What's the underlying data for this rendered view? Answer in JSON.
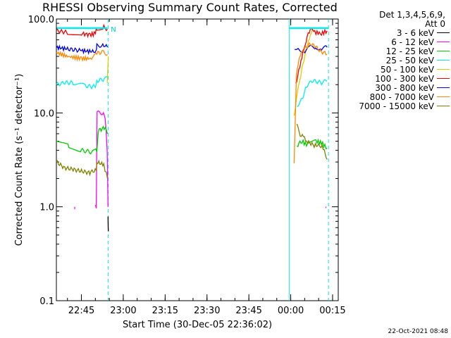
{
  "title": "RHESSI Observing Summary Count Rates, Corrected",
  "legend_header": [
    "Det 1,3,4,5,6,9,",
    "Att 0"
  ],
  "xlabel": "Start Time (30-Dec-05 22:36:02)",
  "ylabel": "Corrected Count Rate (s⁻¹ detector⁻¹)",
  "timestamp": "22-Oct-2021 08:48",
  "chart_data": {
    "type": "line",
    "title": "RHESSI Observing Summary Count Rates, Corrected",
    "xlabel": "Start Time (30-Dec-05 22:36:02)",
    "ylabel": "Corrected Count Rate (s⁻¹ detector⁻¹)",
    "yscale": "log",
    "xlim_minutes": [
      0,
      101
    ],
    "ylim": [
      0.1,
      100.0
    ],
    "xticks": [
      {
        "label": "22:45",
        "minutes": 8.97
      },
      {
        "label": "23:00",
        "minutes": 23.97
      },
      {
        "label": "23:15",
        "minutes": 38.97
      },
      {
        "label": "23:30",
        "minutes": 53.97
      },
      {
        "label": "23:45",
        "minutes": 68.97
      },
      {
        "label": "00:00",
        "minutes": 83.97
      },
      {
        "label": "00:15",
        "minutes": 98.97
      }
    ],
    "yticks": [
      {
        "label": "0.1",
        "value": 0.1
      },
      {
        "label": "1.0",
        "value": 1.0
      },
      {
        "label": "10.0",
        "value": 10.0
      },
      {
        "label": "100.0",
        "value": 100.0
      }
    ],
    "legend_position": "right",
    "series": [
      {
        "name": "3 - 6 keV",
        "color": "#000000",
        "segments": [
          [
            [
              18.5,
              0.75
            ],
            [
              18.6,
              0.55
            ]
          ]
        ]
      },
      {
        "name": "6 - 12 keV",
        "color": "#ff00ff",
        "segments": [
          [
            [
              6.5,
              1.0
            ],
            [
              6.6,
              1.0
            ]
          ],
          [
            [
              14.0,
              1.0
            ],
            [
              14.3,
              1.0
            ],
            [
              14.5,
              5.0
            ],
            [
              14.6,
              10.0
            ],
            [
              16.5,
              10.0
            ],
            [
              17.5,
              9.0
            ],
            [
              18.2,
              4.0
            ],
            [
              18.5,
              1.0
            ]
          ],
          [
            [
              96.5,
              1.0
            ],
            [
              96.6,
              1.0
            ]
          ]
        ]
      },
      {
        "name": "12 - 25 keV",
        "color": "#00cc00",
        "segments": [
          [
            [
              0,
              5.0
            ],
            [
              4.5,
              4.5
            ],
            [
              9,
              4.0
            ],
            [
              13,
              3.8
            ],
            [
              14.5,
              4.0
            ],
            [
              15,
              6.5
            ],
            [
              17.5,
              7.0
            ],
            [
              18.3,
              6.0
            ]
          ],
          [
            [
              86.2,
              4.5
            ],
            [
              88,
              5.0
            ],
            [
              90,
              4.5
            ],
            [
              93,
              5.0
            ],
            [
              95,
              4.8
            ],
            [
              97,
              4.2
            ]
          ]
        ]
      },
      {
        "name": "25 - 50 keV",
        "color": "#00eeee",
        "segments": [
          [
            [
              0,
              20.0
            ],
            [
              3,
              21.0
            ],
            [
              6,
              21.0
            ],
            [
              10,
              19.5
            ],
            [
              13,
              19.0
            ],
            [
              14,
              19.5
            ],
            [
              14.5,
              22.0
            ],
            [
              17.5,
              23.0
            ],
            [
              18.3,
              24.0
            ]
          ],
          [
            [
              86.2,
              12.0
            ],
            [
              88,
              14.0
            ],
            [
              89,
              17.0
            ],
            [
              90,
              20.0
            ],
            [
              92,
              22.0
            ],
            [
              95,
              21.0
            ],
            [
              97,
              22.0
            ]
          ]
        ]
      },
      {
        "name": "50 - 100 keV",
        "color": "#ddcc00",
        "segments": [
          [
            [
              18.2,
              20.0
            ],
            [
              18.6,
              40.0
            ]
          ],
          [
            [
              85.2,
              9.0
            ],
            [
              86,
              14.0
            ],
            [
              88,
              30.0
            ],
            [
              89.5,
              45.0
            ],
            [
              91,
              70.0
            ],
            [
              92,
              80.0
            ]
          ]
        ]
      },
      {
        "name": "100 - 300 keV",
        "color": "#ee0000",
        "segments": [
          [
            [
              0,
              75.0
            ],
            [
              4,
              72.0
            ],
            [
              9,
              70.0
            ],
            [
              12,
              68.0
            ],
            [
              14,
              70.0
            ],
            [
              14.5,
              80.0
            ],
            [
              17,
              82.0
            ],
            [
              18.3,
              78.0
            ]
          ],
          [
            [
              85.7,
              20.0
            ],
            [
              86.5,
              25.0
            ],
            [
              88,
              40.0
            ],
            [
              89.5,
              60.0
            ],
            [
              91,
              80.0
            ],
            [
              93,
              72.0
            ],
            [
              95,
              70.0
            ],
            [
              97,
              75.0
            ]
          ]
        ]
      },
      {
        "name": "300 - 800 keV",
        "color": "#0000ee",
        "segments": [
          [
            [
              0,
              50.0
            ],
            [
              4,
              48.0
            ],
            [
              9,
              46.0
            ],
            [
              13,
              45.0
            ],
            [
              14.3,
              46.0
            ],
            [
              14.5,
              52.0
            ],
            [
              17,
              53.0
            ],
            [
              18.3,
              50.0
            ]
          ],
          [
            [
              85.4,
              50.0
            ],
            [
              87,
              48.0
            ],
            [
              89,
              45.0
            ],
            [
              91,
              50.0
            ],
            [
              93,
              50.0
            ],
            [
              95,
              48.0
            ],
            [
              97,
              50.0
            ]
          ]
        ]
      },
      {
        "name": "800 - 7000 keV",
        "color": "#ff8800",
        "segments": [
          [
            [
              0,
              44.0
            ],
            [
              4,
              40.0
            ],
            [
              9,
              38.0
            ],
            [
              13,
              38.0
            ],
            [
              14.5,
              43.0
            ],
            [
              17,
              45.0
            ],
            [
              18.3,
              42.0
            ]
          ],
          [
            [
              85.2,
              3.0
            ],
            [
              86,
              25.0
            ],
            [
              87,
              40.0
            ],
            [
              89,
              48.0
            ],
            [
              91,
              55.0
            ],
            [
              93,
              50.0
            ],
            [
              95,
              45.0
            ],
            [
              97,
              42.0
            ]
          ]
        ]
      },
      {
        "name": "7000 - 15000 keV",
        "color": "#808000",
        "segments": [
          [
            [
              0,
              3.0
            ],
            [
              3,
              2.6
            ],
            [
              6,
              2.5
            ],
            [
              9,
              2.4
            ],
            [
              12,
              2.3
            ],
            [
              14.3,
              2.5
            ],
            [
              14.5,
              3.0
            ],
            [
              17,
              2.8
            ],
            [
              18.3,
              2.0
            ]
          ],
          [
            [
              86.2,
              8.0
            ],
            [
              87,
              6.0
            ],
            [
              88.5,
              5.5
            ],
            [
              90,
              5.0
            ],
            [
              92,
              4.5
            ],
            [
              94,
              4.5
            ],
            [
              96,
              4.2
            ],
            [
              97,
              3.2
            ]
          ]
        ]
      }
    ],
    "flags": {
      "cyan_top_bar_segments": [
        [
          0.2,
          18.3
        ],
        [
          83.5,
          97.5
        ]
      ],
      "cyan_bar_value": 80.0,
      "night_boundaries_dashed": [
        18.6,
        97.5
      ],
      "day_boundaries_solid": [
        83.4
      ],
      "flag_letter": "N",
      "flag_letter_minutes": 19.5
    }
  }
}
